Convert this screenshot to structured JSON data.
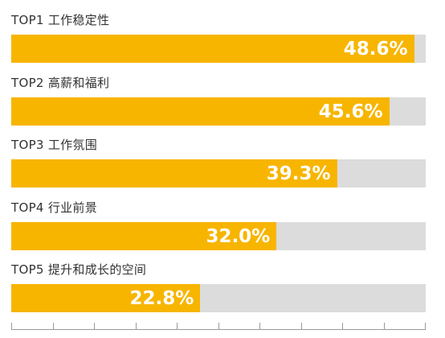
{
  "chart_data": {
    "type": "bar",
    "orientation": "horizontal",
    "categories": [
      "TOP1 工作稳定性",
      "TOP2 高薪和福利",
      "TOP3 工作氛围",
      "TOP4 行业前景",
      "TOP5 提升和成长的空间"
    ],
    "values": [
      48.6,
      45.6,
      39.3,
      32.0,
      22.8
    ],
    "value_labels": [
      "48.6%",
      "45.6%",
      "39.3%",
      "32.0%",
      "22.8%"
    ],
    "xlim": [
      0,
      50
    ],
    "grid": false,
    "legend": "none",
    "colors": {
      "bar": "#f7b500",
      "track": "#dcdcdc",
      "label": "#333333",
      "value": "#ffffff",
      "axis": "#9a9a9a"
    }
  }
}
